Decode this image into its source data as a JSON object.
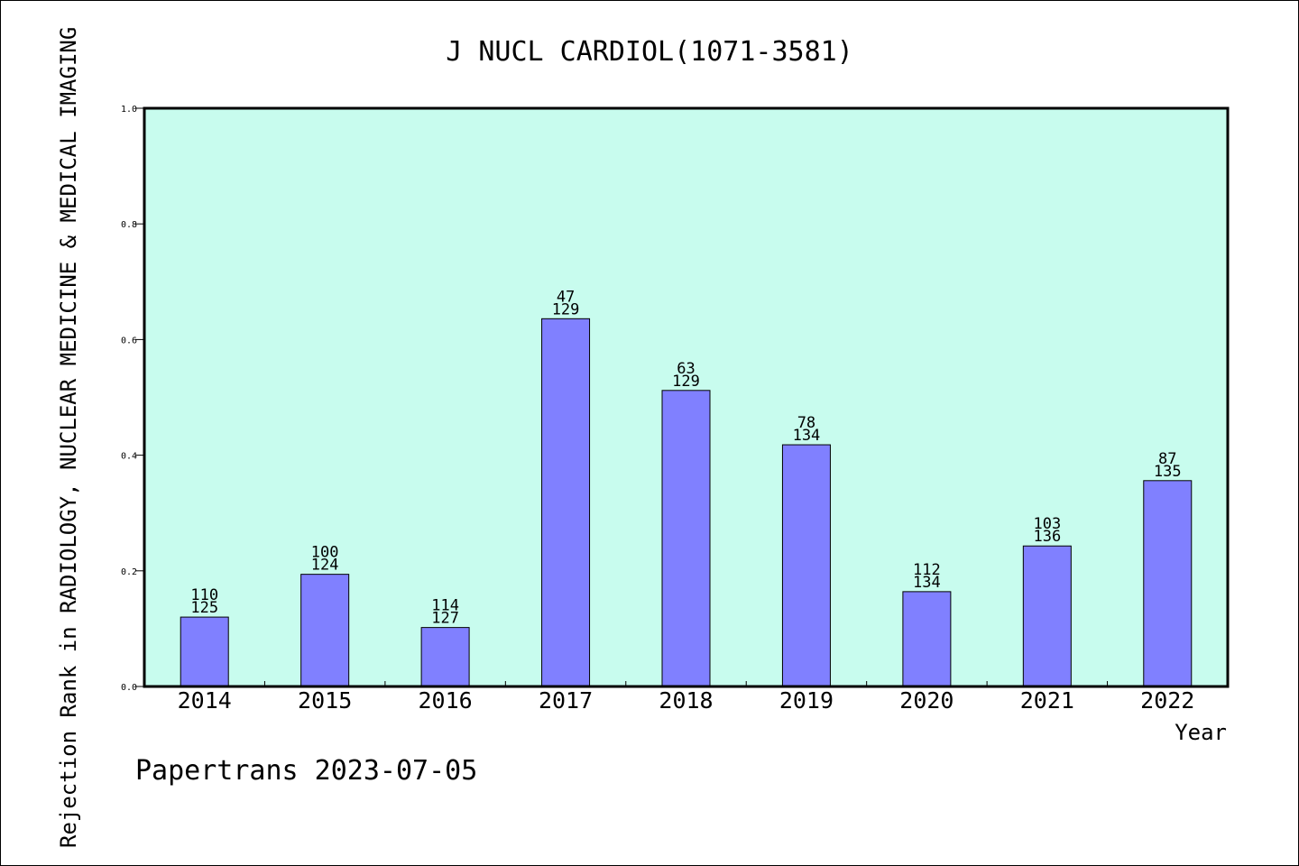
{
  "chart_data": {
    "type": "bar",
    "title": "J NUCL CARDIOL(1071-3581)",
    "xlabel": "Year",
    "ylabel": "Rejection Rank in RADIOLOGY, NUCLEAR MEDICINE & MEDICAL IMAGING",
    "ylim": [
      0,
      1.0
    ],
    "yticks": [
      "0.0",
      "0.2",
      "0.4",
      "0.6",
      "0.8",
      "1.0"
    ],
    "categories": [
      "2014",
      "2015",
      "2016",
      "2017",
      "2018",
      "2019",
      "2020",
      "2021",
      "2022"
    ],
    "values": [
      0.12,
      0.194,
      0.102,
      0.636,
      0.512,
      0.418,
      0.164,
      0.243,
      0.356
    ],
    "rank_labels": [
      "110",
      "100",
      "114",
      "47",
      "63",
      "78",
      "112",
      "103",
      "87"
    ],
    "total_labels": [
      "125",
      "124",
      "127",
      "129",
      "129",
      "134",
      "134",
      "136",
      "135"
    ],
    "bar_color": "#8080ff",
    "plot_background": "#c8fcee",
    "grid": false
  },
  "footer": {
    "credit": "Papertrans 2023-07-05"
  }
}
